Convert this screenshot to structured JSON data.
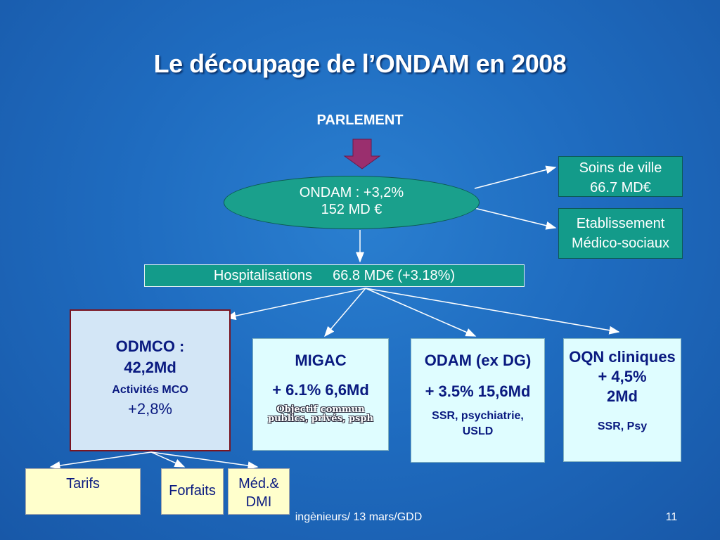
{
  "title": "Le découpage de l’ONDAM en 2008",
  "parlement": "PARLEMENT",
  "ondam": {
    "line1": "ONDAM : +3,2%",
    "line2": "152 MD €"
  },
  "soins_ville": {
    "line1": "Soins de ville",
    "line2": "66.7 MD€"
  },
  "etablissement": {
    "line1": "Etablissement",
    "line2": "Médico-sociaux"
  },
  "hospitalisations": {
    "label": "Hospitalisations",
    "value": "66.8 MD€  (+3.18%)"
  },
  "odmco": {
    "line1": "ODMCO :",
    "line2": "42,2Md",
    "line3": "Activités MCO",
    "line4": "+2,8%"
  },
  "migac": {
    "title": "MIGAC",
    "value": "+ 6.1% 6,6Md",
    "note1": "Objectif commun",
    "note2": "publics, privés, psph"
  },
  "odam": {
    "title": "ODAM (ex DG)",
    "value": "+ 3.5% 15,6Md",
    "sub1": "SSR, psychiatrie,",
    "sub2": "USLD"
  },
  "oqn": {
    "line1": "OQN cliniques",
    "line2": "+  4,5%",
    "line3": "2Md",
    "sub": "SSR, Psy"
  },
  "tarifs": "Tarifs",
  "forfaits": "Forfaits",
  "med_dmi": {
    "line1": "Méd.&",
    "line2": "DMI"
  },
  "footer": {
    "left": "ingènieurs/ 13 mars/GDD",
    "page": "11"
  },
  "colors": {
    "background": "#1f6cc0",
    "teal": "#139b8a",
    "arrow_pink": "#9a2f6e"
  }
}
